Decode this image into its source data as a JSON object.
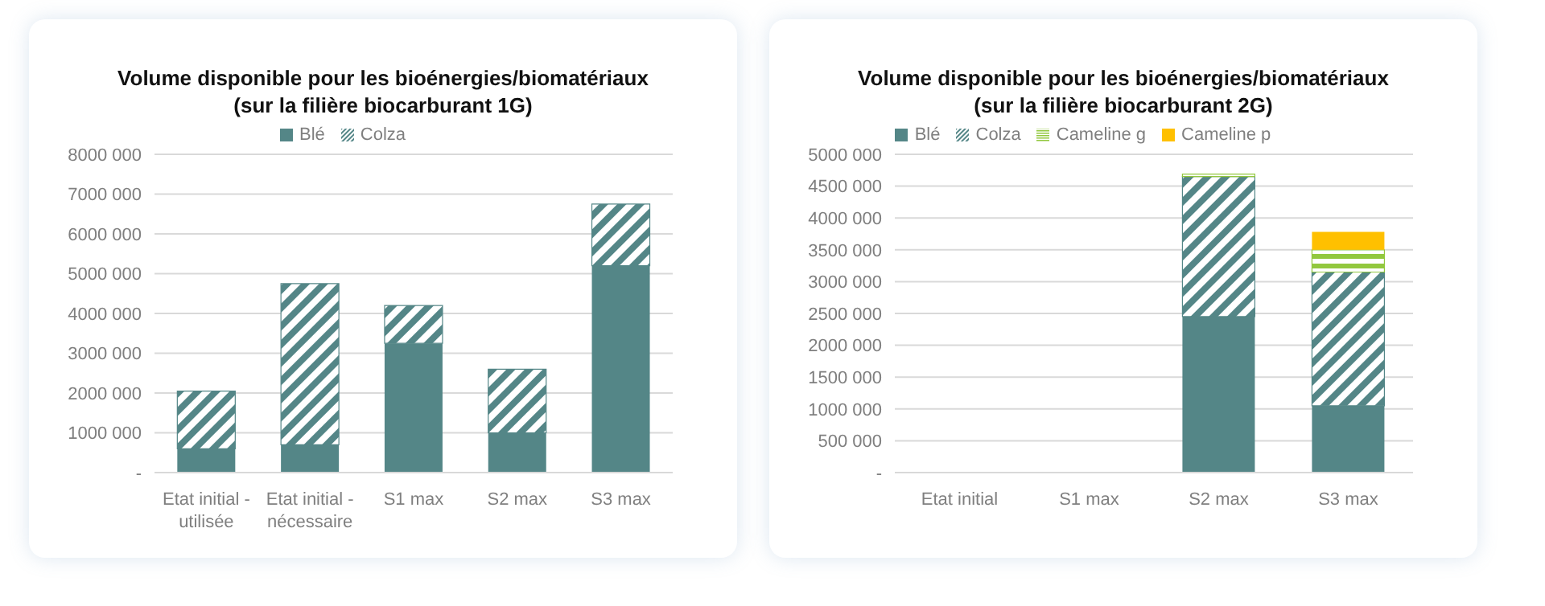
{
  "chart_data": [
    {
      "type": "bar",
      "title": "Volume disponible pour les bioénergies/biomatériaux\n(sur la filière biocarburant 1G)",
      "stacked": true,
      "legend": "top",
      "grid": "y",
      "categories": [
        "Etat initial - utilisée",
        "Etat initial - nécessaire",
        "S1 max",
        "S2 max",
        "S3 max"
      ],
      "series": [
        {
          "name": "Blé",
          "color": "#548687",
          "values": [
            600000,
            700000,
            3250000,
            1000000,
            5200000
          ]
        },
        {
          "name": "Colza",
          "color": "#548687",
          "values": [
            1450000,
            4050000,
            950000,
            1600000,
            1550000
          ]
        }
      ],
      "ylim": [
        0,
        8000000
      ],
      "yticks": [
        {
          "value": 0,
          "label": "-"
        },
        {
          "value": 1000000,
          "label": "1000 000"
        },
        {
          "value": 2000000,
          "label": "2000 000"
        },
        {
          "value": 3000000,
          "label": "3000 000"
        },
        {
          "value": 4000000,
          "label": "4000 000"
        },
        {
          "value": 5000000,
          "label": "5000 000"
        },
        {
          "value": 6000000,
          "label": "6000 000"
        },
        {
          "value": 7000000,
          "label": "7000 000"
        },
        {
          "value": 8000000,
          "label": "8000 000"
        }
      ]
    },
    {
      "type": "bar",
      "title": "Volume disponible pour les bioénergies/biomatériaux\n(sur la filière biocarburant 2G)",
      "stacked": true,
      "legend": "top",
      "grid": "y",
      "categories": [
        "Etat initial",
        "S1 max",
        "S2 max",
        "S3 max"
      ],
      "series": [
        {
          "name": "Blé",
          "color": "#548687",
          "values": [
            null,
            null,
            2450000,
            1050000
          ]
        },
        {
          "name": "Colza",
          "color": "#548687",
          "values": [
            null,
            null,
            2200000,
            2100000
          ]
        },
        {
          "name": "Cameline g",
          "color": "#92c83e",
          "values": [
            null,
            null,
            40000,
            350000
          ]
        },
        {
          "name": "Cameline p",
          "color": "#ffc000",
          "values": [
            null,
            null,
            null,
            280000
          ]
        }
      ],
      "ylim": [
        0,
        5000000
      ],
      "yticks": [
        {
          "value": 0,
          "label": "-"
        },
        {
          "value": 500000,
          "label": "500 000"
        },
        {
          "value": 1000000,
          "label": "1000 000"
        },
        {
          "value": 1500000,
          "label": "1500 000"
        },
        {
          "value": 2000000,
          "label": "2000 000"
        },
        {
          "value": 2500000,
          "label": "2500 000"
        },
        {
          "value": 3000000,
          "label": "3000 000"
        },
        {
          "value": 3500000,
          "label": "3500 000"
        },
        {
          "value": 4000000,
          "label": "4000 000"
        },
        {
          "value": 4500000,
          "label": "4500 000"
        },
        {
          "value": 5000000,
          "label": "5000 000"
        }
      ]
    }
  ]
}
